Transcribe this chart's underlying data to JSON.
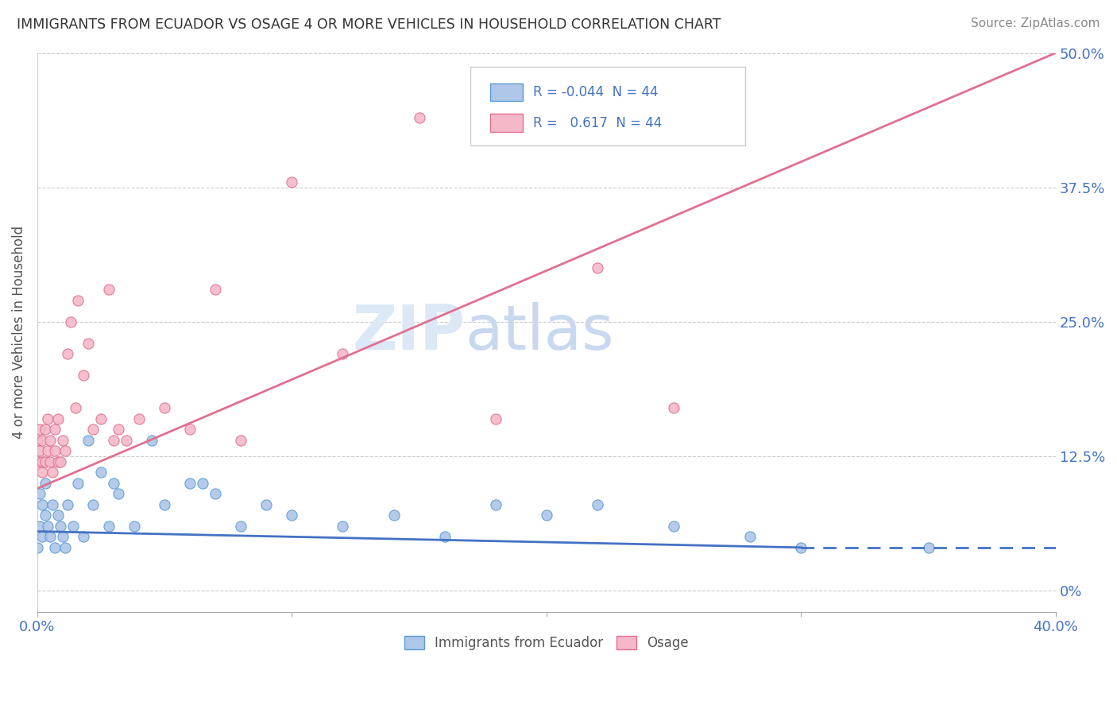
{
  "title": "IMMIGRANTS FROM ECUADOR VS OSAGE 4 OR MORE VEHICLES IN HOUSEHOLD CORRELATION CHART",
  "source": "Source: ZipAtlas.com",
  "ylabel": "4 or more Vehicles in Household",
  "legend_label1": "Immigrants from Ecuador",
  "legend_label2": "Osage",
  "R1": -0.044,
  "R2": 0.617,
  "N": 44,
  "color_blue_fill": "#aec6e8",
  "color_blue_edge": "#5b9bd5",
  "color_pink_fill": "#f4b8c8",
  "color_pink_edge": "#e07090",
  "color_blue_line": "#4472c4",
  "color_pink_line": "#e07090",
  "color_text": "#4472c4",
  "color_axis_text": "#555555",
  "watermark_zip": "ZIP",
  "watermark_atlas": "atlas",
  "watermark_color": "#dce8f5",
  "xlim": [
    0.0,
    0.4
  ],
  "ylim": [
    -0.02,
    0.5
  ],
  "right_ytick_values": [
    0.0,
    0.125,
    0.25,
    0.375,
    0.5
  ],
  "right_ytick_labels": [
    "0%",
    "12.5%",
    "25.0%",
    "37.5%",
    "50.0%"
  ],
  "blue_scatter_x": [
    0.0,
    0.001,
    0.001,
    0.002,
    0.002,
    0.003,
    0.003,
    0.004,
    0.005,
    0.006,
    0.007,
    0.008,
    0.009,
    0.01,
    0.011,
    0.012,
    0.014,
    0.016,
    0.018,
    0.02,
    0.022,
    0.025,
    0.028,
    0.03,
    0.032,
    0.038,
    0.045,
    0.05,
    0.06,
    0.065,
    0.07,
    0.08,
    0.09,
    0.1,
    0.12,
    0.14,
    0.16,
    0.18,
    0.2,
    0.22,
    0.25,
    0.28,
    0.3,
    0.35
  ],
  "blue_scatter_y": [
    0.04,
    0.06,
    0.09,
    0.05,
    0.08,
    0.07,
    0.1,
    0.06,
    0.05,
    0.08,
    0.04,
    0.07,
    0.06,
    0.05,
    0.04,
    0.08,
    0.06,
    0.1,
    0.05,
    0.14,
    0.08,
    0.11,
    0.06,
    0.1,
    0.09,
    0.06,
    0.14,
    0.08,
    0.1,
    0.1,
    0.09,
    0.06,
    0.08,
    0.07,
    0.06,
    0.07,
    0.05,
    0.08,
    0.07,
    0.08,
    0.06,
    0.05,
    0.04,
    0.04
  ],
  "pink_scatter_x": [
    0.0,
    0.0,
    0.001,
    0.001,
    0.002,
    0.002,
    0.002,
    0.003,
    0.003,
    0.004,
    0.004,
    0.005,
    0.005,
    0.006,
    0.007,
    0.007,
    0.008,
    0.008,
    0.009,
    0.01,
    0.011,
    0.012,
    0.013,
    0.015,
    0.016,
    0.018,
    0.02,
    0.022,
    0.025,
    0.028,
    0.03,
    0.032,
    0.035,
    0.04,
    0.05,
    0.06,
    0.07,
    0.08,
    0.1,
    0.12,
    0.15,
    0.18,
    0.22,
    0.25
  ],
  "pink_scatter_y": [
    0.12,
    0.14,
    0.13,
    0.15,
    0.11,
    0.12,
    0.14,
    0.12,
    0.15,
    0.13,
    0.16,
    0.12,
    0.14,
    0.11,
    0.13,
    0.15,
    0.12,
    0.16,
    0.12,
    0.14,
    0.13,
    0.22,
    0.25,
    0.17,
    0.27,
    0.2,
    0.23,
    0.15,
    0.16,
    0.28,
    0.14,
    0.15,
    0.14,
    0.16,
    0.17,
    0.15,
    0.28,
    0.14,
    0.38,
    0.22,
    0.44,
    0.16,
    0.3,
    0.17
  ],
  "blue_line_x": [
    0.0,
    0.3,
    0.4
  ],
  "blue_line_y": [
    0.055,
    0.04,
    0.04
  ],
  "pink_line_x": [
    0.0,
    0.4
  ],
  "pink_line_y": [
    0.095,
    0.5
  ]
}
